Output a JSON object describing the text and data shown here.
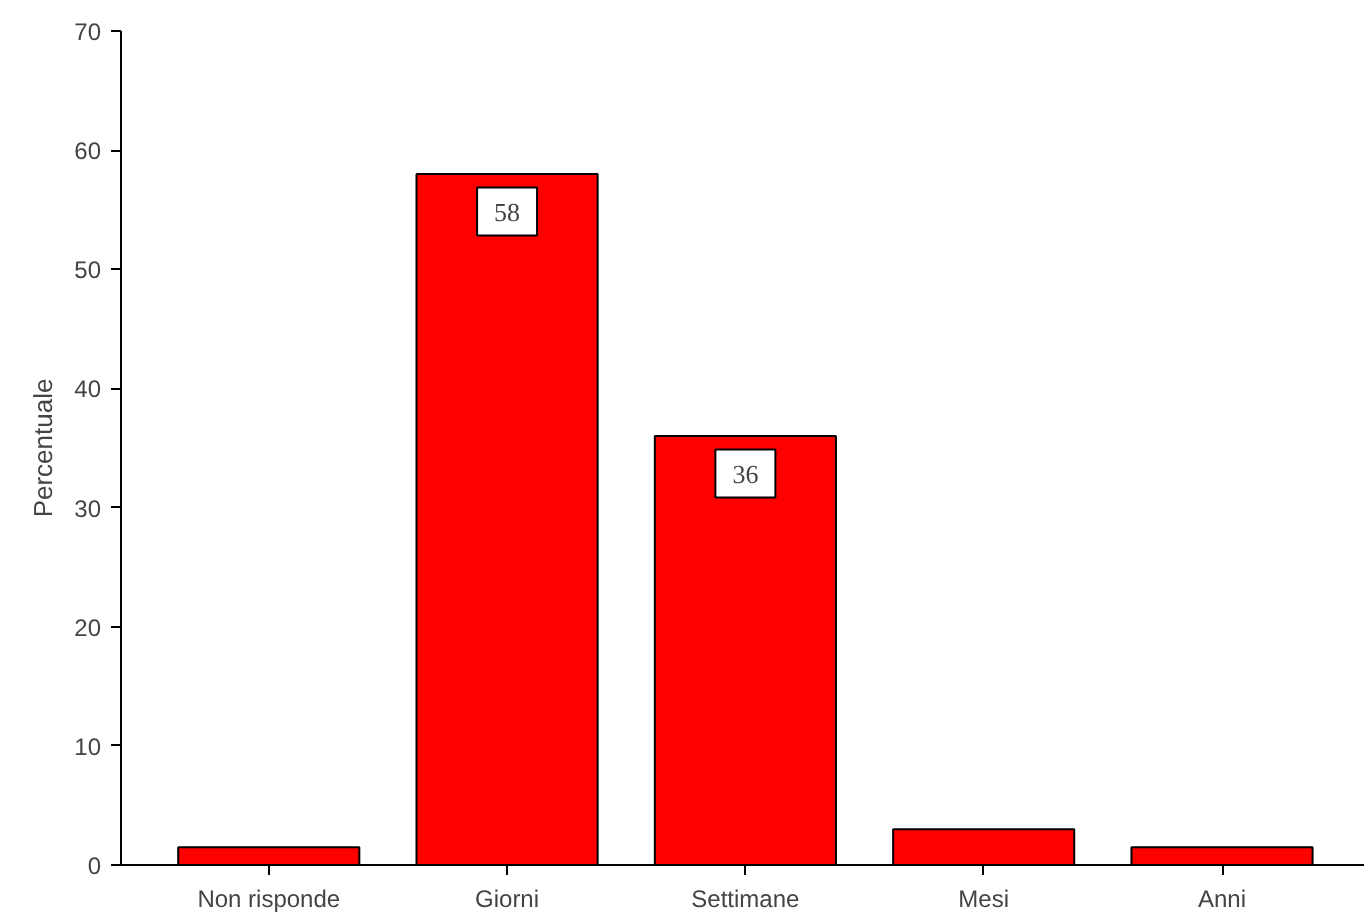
{
  "chart_data": {
    "type": "bar",
    "ylabel": "Percentuale",
    "categories": [
      "Non risponde",
      "Giorni",
      "Settimane",
      "Mesi",
      "Anni"
    ],
    "values": [
      1.5,
      58,
      36,
      3,
      1.5
    ],
    "value_labels": [
      null,
      "58",
      "36",
      null,
      null
    ],
    "color": "#ff0000",
    "ylim": [
      0,
      70
    ],
    "yticks": [
      0,
      10,
      20,
      30,
      40,
      50,
      60,
      70
    ],
    "grid": false
  }
}
